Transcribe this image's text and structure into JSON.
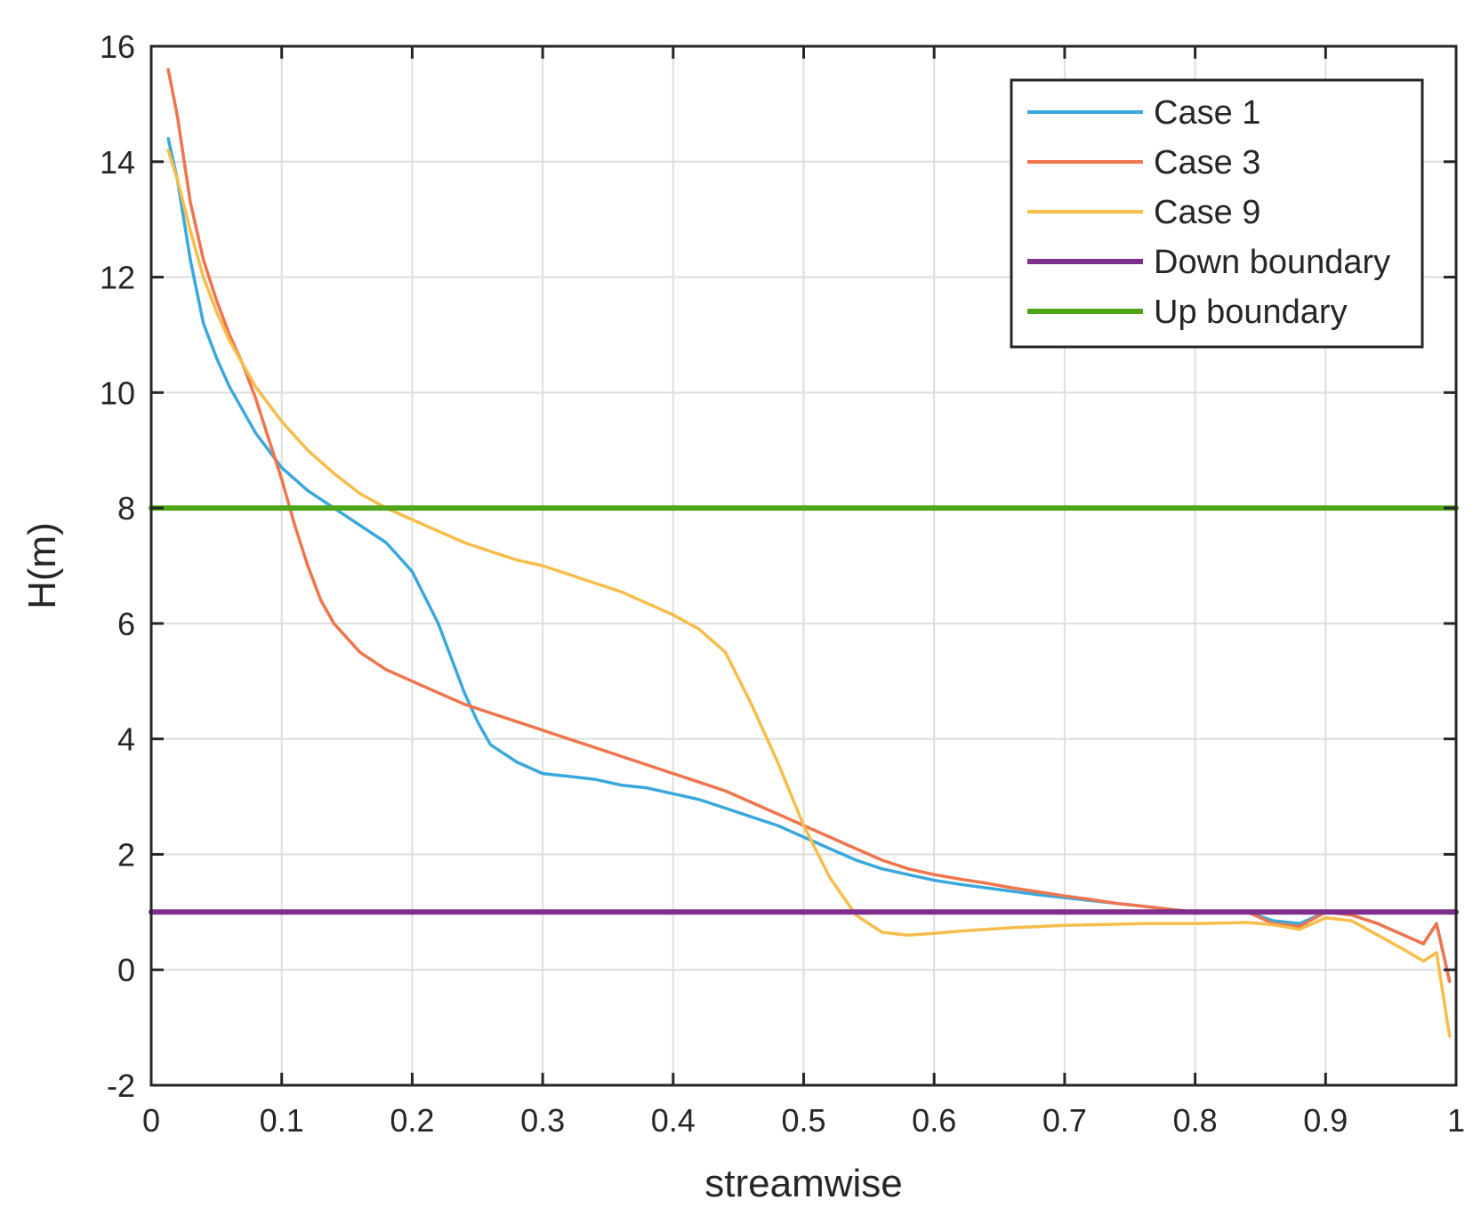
{
  "chart_data": {
    "type": "line",
    "xlabel": "streamwise",
    "ylabel": "H(m)",
    "xlim": [
      0,
      1
    ],
    "ylim": [
      -2,
      16
    ],
    "xticks": [
      "0",
      "0.1",
      "0.2",
      "0.3",
      "0.4",
      "0.5",
      "0.6",
      "0.7",
      "0.8",
      "0.9",
      "1"
    ],
    "yticks": [
      "-2",
      "0",
      "2",
      "4",
      "6",
      "8",
      "10",
      "12",
      "14",
      "16"
    ],
    "grid": true,
    "legend_position": "top-right",
    "series": [
      {
        "name": "Case 1",
        "color": "#3aa8dc",
        "x": [
          0.013,
          0.02,
          0.03,
          0.04,
          0.05,
          0.06,
          0.07,
          0.08,
          0.09,
          0.1,
          0.12,
          0.14,
          0.16,
          0.18,
          0.2,
          0.22,
          0.24,
          0.25,
          0.26,
          0.28,
          0.3,
          0.32,
          0.34,
          0.36,
          0.38,
          0.4,
          0.42,
          0.44,
          0.46,
          0.48,
          0.5,
          0.52,
          0.54,
          0.56,
          0.58,
          0.6,
          0.62,
          0.64,
          0.66,
          0.68,
          0.7,
          0.72,
          0.74,
          0.76,
          0.78,
          0.8,
          0.82,
          0.84,
          0.86,
          0.88,
          0.9,
          0.92,
          0.94,
          0.96,
          0.975,
          0.985,
          0.995
        ],
        "y": [
          14.4,
          13.7,
          12.3,
          11.2,
          10.6,
          10.1,
          9.7,
          9.3,
          9.0,
          8.7,
          8.3,
          8.0,
          7.7,
          7.4,
          6.9,
          6.0,
          4.8,
          4.3,
          3.9,
          3.6,
          3.4,
          3.35,
          3.3,
          3.2,
          3.15,
          3.05,
          2.95,
          2.8,
          2.65,
          2.5,
          2.3,
          2.1,
          1.9,
          1.75,
          1.65,
          1.55,
          1.48,
          1.42,
          1.36,
          1.3,
          1.25,
          1.2,
          1.15,
          1.1,
          1.05,
          1.0,
          1.0,
          1.0,
          0.85,
          0.8,
          1.0,
          0.95,
          0.8,
          0.6,
          0.45,
          0.8,
          -0.2
        ]
      },
      {
        "name": "Case 3",
        "color": "#f0744c",
        "x": [
          0.013,
          0.02,
          0.03,
          0.04,
          0.05,
          0.06,
          0.07,
          0.08,
          0.09,
          0.1,
          0.11,
          0.12,
          0.13,
          0.14,
          0.16,
          0.18,
          0.2,
          0.22,
          0.24,
          0.26,
          0.28,
          0.3,
          0.32,
          0.34,
          0.36,
          0.38,
          0.4,
          0.42,
          0.44,
          0.46,
          0.48,
          0.5,
          0.52,
          0.54,
          0.56,
          0.58,
          0.6,
          0.62,
          0.64,
          0.66,
          0.68,
          0.7,
          0.72,
          0.74,
          0.76,
          0.78,
          0.8,
          0.82,
          0.84,
          0.86,
          0.88,
          0.9,
          0.92,
          0.94,
          0.96,
          0.975,
          0.985,
          0.995
        ],
        "y": [
          15.6,
          14.8,
          13.3,
          12.3,
          11.6,
          11.0,
          10.5,
          9.9,
          9.2,
          8.5,
          7.7,
          7.0,
          6.4,
          6.0,
          5.5,
          5.2,
          5.0,
          4.8,
          4.6,
          4.45,
          4.3,
          4.15,
          4.0,
          3.85,
          3.7,
          3.55,
          3.4,
          3.25,
          3.1,
          2.9,
          2.7,
          2.5,
          2.3,
          2.1,
          1.9,
          1.75,
          1.65,
          1.57,
          1.5,
          1.42,
          1.35,
          1.28,
          1.22,
          1.15,
          1.1,
          1.05,
          1.0,
          1.0,
          1.0,
          0.8,
          0.75,
          1.0,
          0.95,
          0.8,
          0.6,
          0.45,
          0.8,
          -0.2
        ]
      },
      {
        "name": "Case 9",
        "color": "#f7bd4a",
        "x": [
          0.013,
          0.02,
          0.03,
          0.04,
          0.05,
          0.06,
          0.07,
          0.08,
          0.1,
          0.12,
          0.14,
          0.16,
          0.18,
          0.2,
          0.22,
          0.24,
          0.26,
          0.28,
          0.3,
          0.32,
          0.34,
          0.36,
          0.38,
          0.4,
          0.42,
          0.44,
          0.46,
          0.48,
          0.5,
          0.52,
          0.54,
          0.56,
          0.58,
          0.6,
          0.62,
          0.64,
          0.66,
          0.68,
          0.7,
          0.72,
          0.74,
          0.76,
          0.78,
          0.8,
          0.82,
          0.84,
          0.86,
          0.88,
          0.9,
          0.92,
          0.94,
          0.96,
          0.975,
          0.985,
          0.995
        ],
        "y": [
          14.2,
          13.7,
          12.8,
          12.0,
          11.4,
          10.9,
          10.5,
          10.1,
          9.5,
          9.0,
          8.6,
          8.25,
          8.0,
          7.8,
          7.6,
          7.4,
          7.25,
          7.1,
          7.0,
          6.85,
          6.7,
          6.55,
          6.35,
          6.15,
          5.9,
          5.5,
          4.6,
          3.6,
          2.5,
          1.6,
          0.95,
          0.65,
          0.6,
          0.63,
          0.67,
          0.7,
          0.73,
          0.75,
          0.77,
          0.78,
          0.79,
          0.8,
          0.8,
          0.8,
          0.81,
          0.82,
          0.78,
          0.7,
          0.9,
          0.85,
          0.6,
          0.35,
          0.15,
          0.3,
          -1.15
        ]
      },
      {
        "name": "Down boundary",
        "color": "#7e2f8e",
        "x": [
          0,
          1
        ],
        "y": [
          1,
          1
        ]
      },
      {
        "name": "Up boundary",
        "color": "#4da61a",
        "x": [
          0,
          1
        ],
        "y": [
          8,
          8
        ]
      }
    ]
  }
}
